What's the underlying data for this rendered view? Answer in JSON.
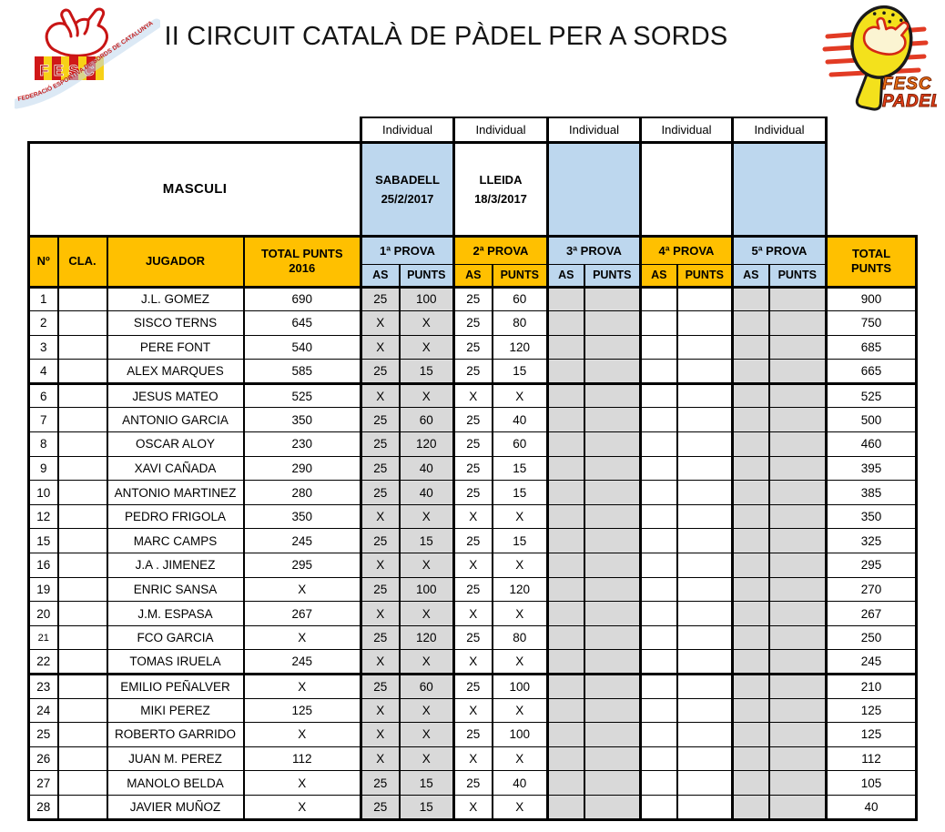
{
  "page": {
    "title": "II CIRCUIT CATALÀ DE PÀDEL PER A SORDS"
  },
  "logos": {
    "left": {
      "banner": "FEDERACIÓ ESPORTIVA DE SORDS DE CATALUNYA",
      "acronym": "FESC"
    },
    "right": {
      "line1": "FESC",
      "line2": "PADEL"
    }
  },
  "colors": {
    "header_orange": "#FFC000",
    "event_blue": "#BDD7EE",
    "played_gray": "#D9D9D9",
    "logo_red": "#C81414",
    "racket_yellow": "#F3E11C"
  },
  "table": {
    "category_label": "MASCULI",
    "individual_label": "Individual",
    "events": [
      {
        "name": "SABADELL",
        "date": "25/2/2017"
      },
      {
        "name": "LLEIDA",
        "date": "18/3/2017"
      },
      {
        "name": "",
        "date": ""
      },
      {
        "name": "",
        "date": ""
      },
      {
        "name": "",
        "date": ""
      }
    ],
    "headers": {
      "num": "Nº",
      "cla": "CLA.",
      "jugador": "JUGADOR",
      "total_2016": "TOTAL PUNTS 2016",
      "provas": [
        "1ª PROVA",
        "2ª PROVA",
        "3ª PROVA",
        "4ª PROVA",
        "5ª PROVA"
      ],
      "as": "AS",
      "punts": "PUNTS",
      "total": "TOTAL PUNTS"
    },
    "rows": [
      {
        "num": "1",
        "cla": "",
        "jugador": "J.L. GOMEZ",
        "total_2016": "690",
        "results": [
          "25",
          "100",
          "25",
          "60",
          "",
          "",
          "",
          "",
          "",
          ""
        ],
        "total": "900"
      },
      {
        "num": "2",
        "cla": "",
        "jugador": "SISCO TERNS",
        "total_2016": "645",
        "results": [
          "X",
          "X",
          "25",
          "80",
          "",
          "",
          "",
          "",
          "",
          ""
        ],
        "total": "750"
      },
      {
        "num": "3",
        "cla": "",
        "jugador": "PERE FONT",
        "total_2016": "540",
        "results": [
          "X",
          "X",
          "25",
          "120",
          "",
          "",
          "",
          "",
          "",
          ""
        ],
        "total": "685"
      },
      {
        "num": "4",
        "cla": "",
        "jugador": "ALEX MARQUES",
        "total_2016": "585",
        "results": [
          "25",
          "15",
          "25",
          "15",
          "",
          "",
          "",
          "",
          "",
          ""
        ],
        "total": "665"
      },
      {
        "num": "6",
        "cla": "",
        "jugador": "JESUS MATEO",
        "total_2016": "525",
        "results": [
          "X",
          "X",
          "X",
          "X",
          "",
          "",
          "",
          "",
          "",
          ""
        ],
        "total": "525",
        "divider_above": true
      },
      {
        "num": "7",
        "cla": "",
        "jugador": "ANTONIO GARCIA",
        "total_2016": "350",
        "results": [
          "25",
          "60",
          "25",
          "40",
          "",
          "",
          "",
          "",
          "",
          ""
        ],
        "total": "500"
      },
      {
        "num": "8",
        "cla": "",
        "jugador": "OSCAR ALOY",
        "total_2016": "230",
        "results": [
          "25",
          "120",
          "25",
          "60",
          "",
          "",
          "",
          "",
          "",
          ""
        ],
        "total": "460"
      },
      {
        "num": "9",
        "cla": "",
        "jugador": "XAVI CAÑADA",
        "total_2016": "290",
        "results": [
          "25",
          "40",
          "25",
          "15",
          "",
          "",
          "",
          "",
          "",
          ""
        ],
        "total": "395"
      },
      {
        "num": "10",
        "cla": "",
        "jugador": "ANTONIO MARTINEZ",
        "total_2016": "280",
        "results": [
          "25",
          "40",
          "25",
          "15",
          "",
          "",
          "",
          "",
          "",
          ""
        ],
        "total": "385"
      },
      {
        "num": "12",
        "cla": "",
        "jugador": "PEDRO FRIGOLA",
        "total_2016": "350",
        "results": [
          "X",
          "X",
          "X",
          "X",
          "",
          "",
          "",
          "",
          "",
          ""
        ],
        "total": "350"
      },
      {
        "num": "15",
        "cla": "",
        "jugador": "MARC CAMPS",
        "total_2016": "245",
        "results": [
          "25",
          "15",
          "25",
          "15",
          "",
          "",
          "",
          "",
          "",
          ""
        ],
        "total": "325"
      },
      {
        "num": "16",
        "cla": "",
        "jugador": "J.A . JIMENEZ",
        "total_2016": "295",
        "results": [
          "X",
          "X",
          "X",
          "X",
          "",
          "",
          "",
          "",
          "",
          ""
        ],
        "total": "295"
      },
      {
        "num": "19",
        "cla": "",
        "jugador": "ENRIC SANSA",
        "total_2016": "X",
        "results": [
          "25",
          "100",
          "25",
          "120",
          "",
          "",
          "",
          "",
          "",
          ""
        ],
        "total": "270"
      },
      {
        "num": "20",
        "cla": "",
        "jugador": "J.M. ESPASA",
        "total_2016": "267",
        "results": [
          "X",
          "X",
          "X",
          "X",
          "",
          "",
          "",
          "",
          "",
          ""
        ],
        "total": "267"
      },
      {
        "num": "21",
        "cla": "",
        "jugador": "FCO GARCIA",
        "total_2016": "X",
        "results": [
          "25",
          "120",
          "25",
          "80",
          "",
          "",
          "",
          "",
          "",
          ""
        ],
        "total": "250",
        "small_num": true
      },
      {
        "num": "22",
        "cla": "",
        "jugador": "TOMAS IRUELA",
        "total_2016": "245",
        "results": [
          "X",
          "X",
          "X",
          "X",
          "",
          "",
          "",
          "",
          "",
          ""
        ],
        "total": "245"
      },
      {
        "num": "23",
        "cla": "",
        "jugador": "EMILIO PEÑALVER",
        "total_2016": "X",
        "results": [
          "25",
          "60",
          "25",
          "100",
          "",
          "",
          "",
          "",
          "",
          ""
        ],
        "total": "210",
        "divider_above": true
      },
      {
        "num": "24",
        "cla": "",
        "jugador": "MIKI PEREZ",
        "total_2016": "125",
        "results": [
          "X",
          "X",
          "X",
          "X",
          "",
          "",
          "",
          "",
          "",
          ""
        ],
        "total": "125"
      },
      {
        "num": "25",
        "cla": "",
        "jugador": "ROBERTO GARRIDO",
        "total_2016": "X",
        "results": [
          "X",
          "X",
          "25",
          "100",
          "",
          "",
          "",
          "",
          "",
          ""
        ],
        "total": "125"
      },
      {
        "num": "26",
        "cla": "",
        "jugador": "JUAN M. PEREZ",
        "total_2016": "112",
        "results": [
          "X",
          "X",
          "X",
          "X",
          "",
          "",
          "",
          "",
          "",
          ""
        ],
        "total": "112"
      },
      {
        "num": "27",
        "cla": "",
        "jugador": "MANOLO BELDA",
        "total_2016": "X",
        "results": [
          "25",
          "15",
          "25",
          "40",
          "",
          "",
          "",
          "",
          "",
          ""
        ],
        "total": "105"
      },
      {
        "num": "28",
        "cla": "",
        "jugador": "JAVIER MUÑOZ",
        "total_2016": "X",
        "results": [
          "25",
          "15",
          "X",
          "X",
          "",
          "",
          "",
          "",
          "",
          ""
        ],
        "total": "40"
      }
    ]
  }
}
